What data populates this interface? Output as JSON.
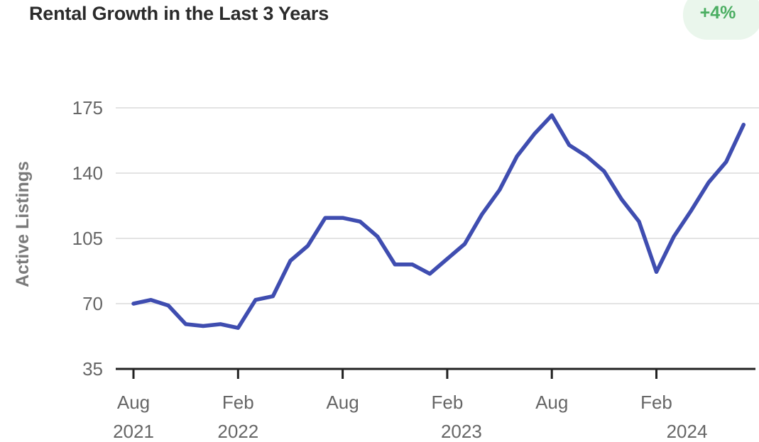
{
  "header": {
    "title": "Rental Growth in the Last 3 Years",
    "badge": "+4%"
  },
  "colors": {
    "line": "#3f4db0",
    "grid": "#e3e3e3",
    "axis": "#222222",
    "badge_bg": "#eaf6ec",
    "badge_text": "#4bae62"
  },
  "chart_data": {
    "type": "line",
    "title": "Rental Growth in the Last 3 Years",
    "ylabel": "Active Listings",
    "xlabel": "",
    "ylim": [
      35,
      175
    ],
    "yticks": [
      35,
      70,
      105,
      140,
      175
    ],
    "grid": "horizontal",
    "xticks": [
      {
        "month": "Aug",
        "year": "2021"
      },
      {
        "month": "Feb",
        "year": "2022"
      },
      {
        "month": "Aug",
        "year": ""
      },
      {
        "month": "Feb",
        "year": "2023"
      },
      {
        "month": "Aug",
        "year": ""
      },
      {
        "month": "Feb",
        "year": "2024"
      }
    ],
    "x": [
      "2021-08",
      "2021-09",
      "2021-10",
      "2021-11",
      "2021-12",
      "2022-01",
      "2022-02",
      "2022-03",
      "2022-04",
      "2022-05",
      "2022-06",
      "2022-07",
      "2022-08",
      "2022-09",
      "2022-10",
      "2022-11",
      "2022-12",
      "2023-01",
      "2023-02",
      "2023-03",
      "2023-04",
      "2023-05",
      "2023-06",
      "2023-07",
      "2023-08",
      "2023-09",
      "2023-10",
      "2023-11",
      "2023-12",
      "2024-01",
      "2024-02",
      "2024-03",
      "2024-04",
      "2024-05",
      "2024-06",
      "2024-07"
    ],
    "series": [
      {
        "values": [
          70,
          72,
          69,
          59,
          58,
          59,
          57,
          72,
          74,
          93,
          101,
          116,
          116,
          114,
          106,
          91,
          91,
          86,
          94,
          102,
          118,
          131,
          149,
          161,
          171,
          155,
          149,
          141,
          126,
          114,
          87,
          106,
          120,
          135,
          146,
          166
        ]
      }
    ]
  }
}
